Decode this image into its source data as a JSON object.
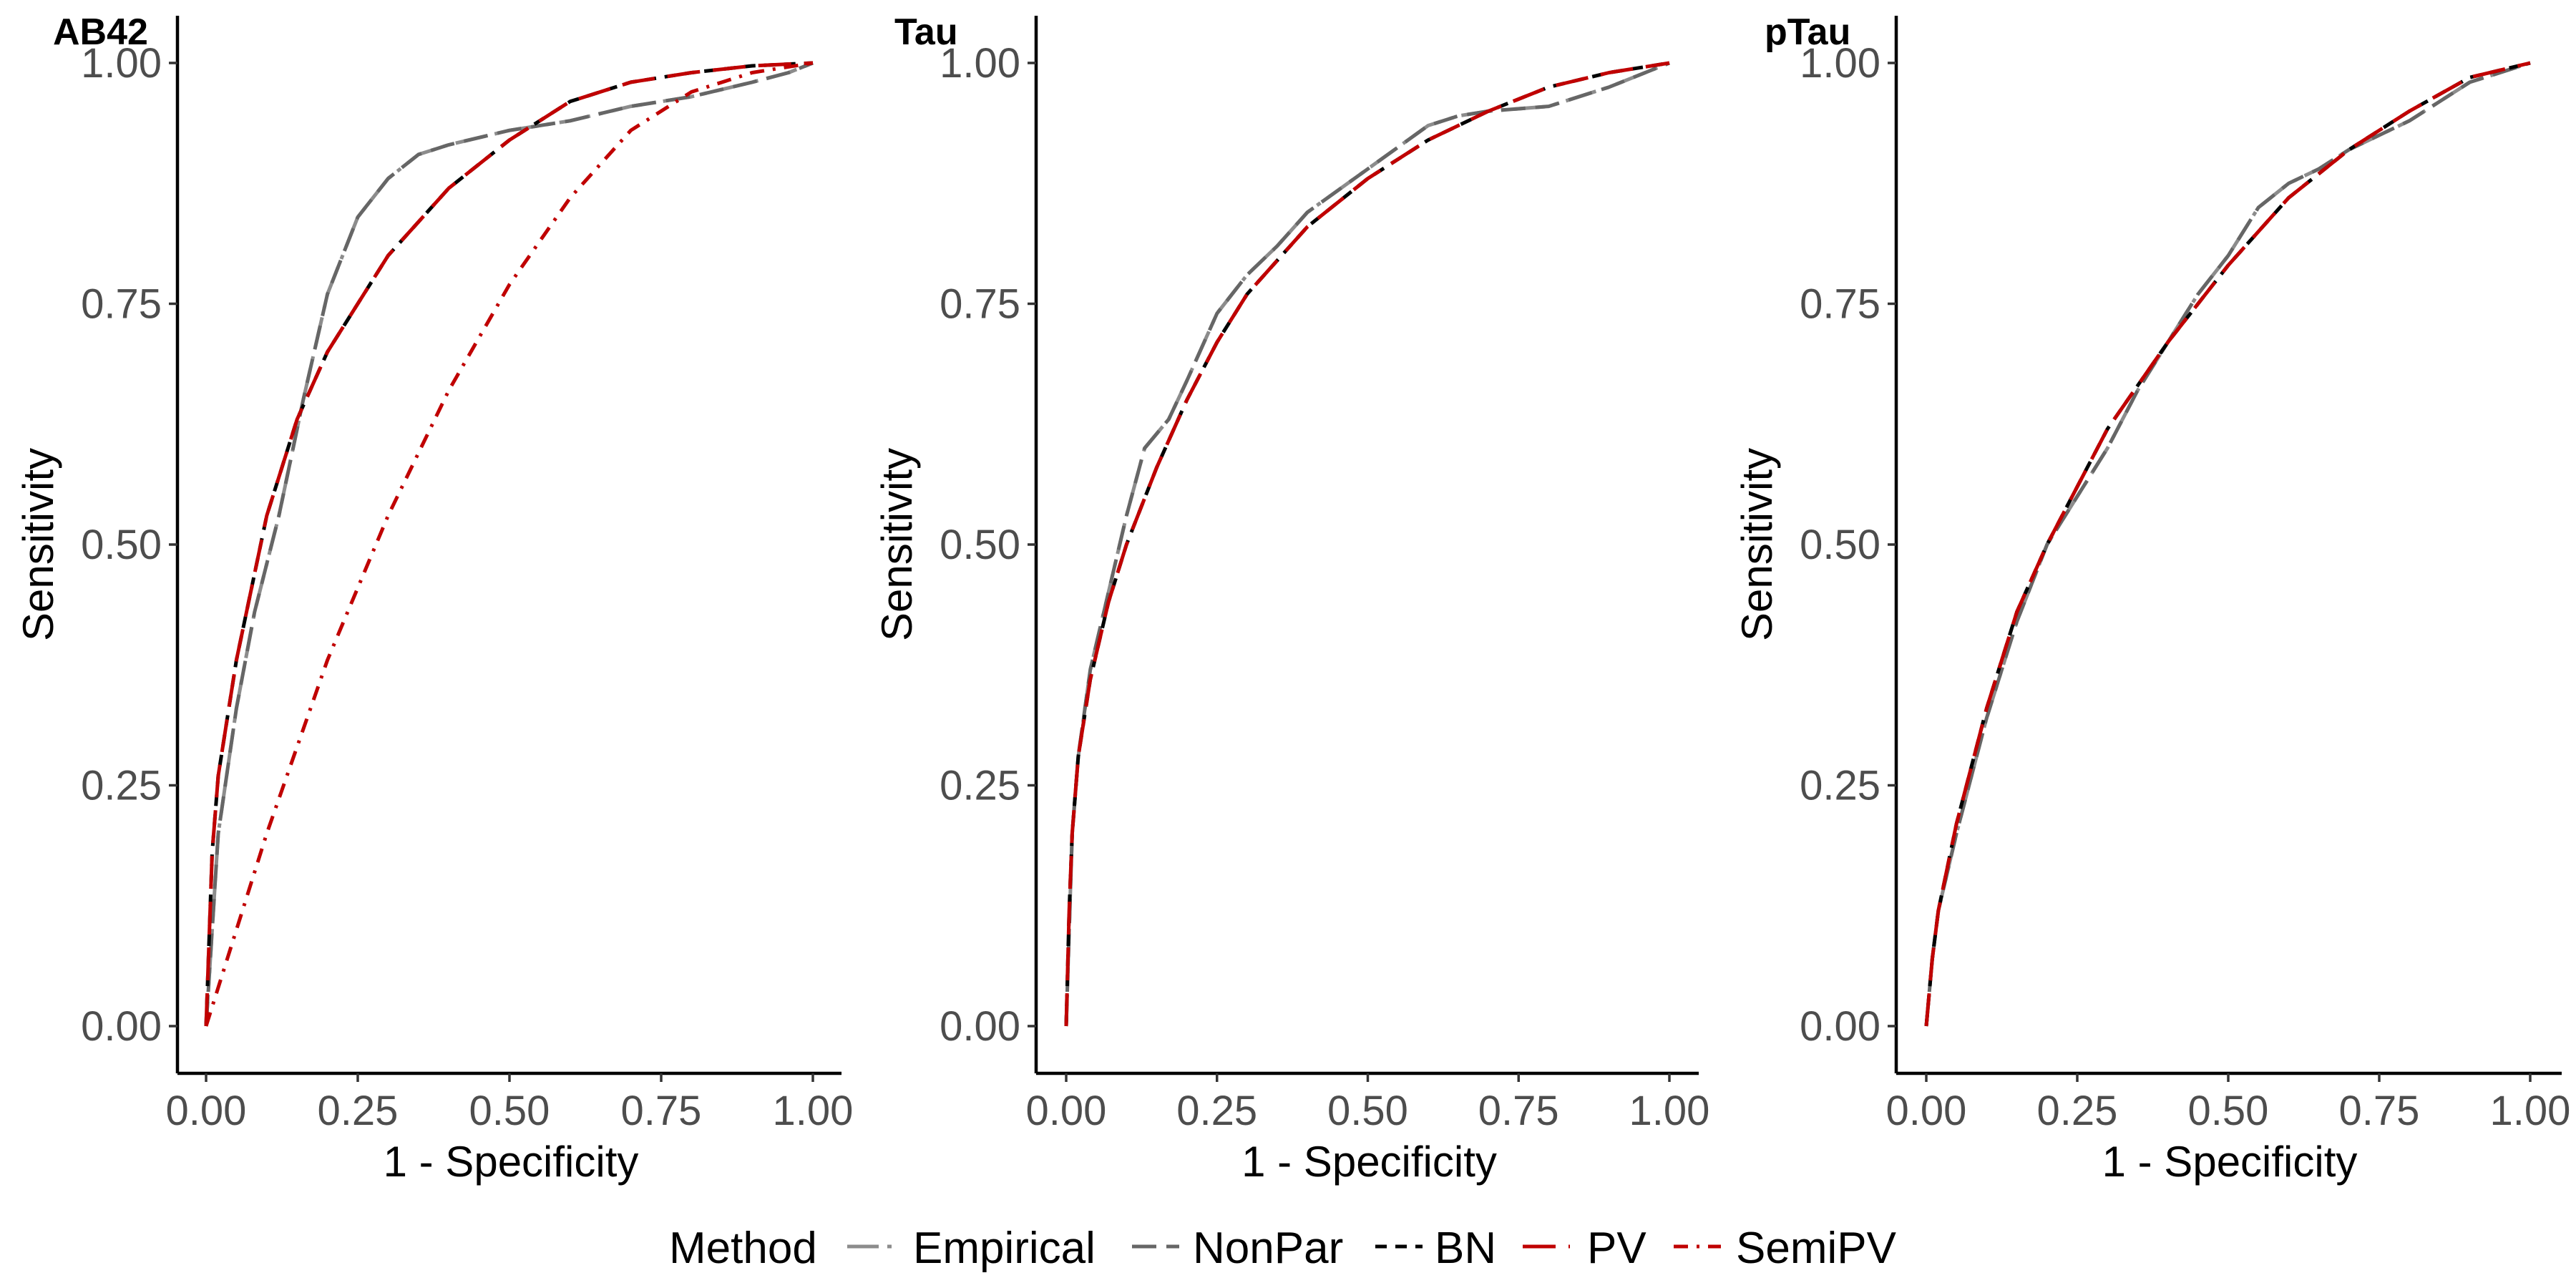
{
  "legend": {
    "title": "Method",
    "position": "bottom",
    "entries": [
      {
        "key": "Empirical",
        "label": "Empirical"
      },
      {
        "key": "NonPar",
        "label": "NonPar"
      },
      {
        "key": "BN",
        "label": "BN"
      },
      {
        "key": "PV",
        "label": "PV"
      },
      {
        "key": "SemiPV",
        "label": "SemiPV"
      }
    ]
  },
  "styles": {
    "Empirical": {
      "color": "#8c8c8c",
      "dash": "44 12 6 12"
    },
    "NonPar": {
      "color": "#666666",
      "dash": "34 14"
    },
    "BN": {
      "color": "#000000",
      "dash": "16 12"
    },
    "PV": {
      "color": "#c00000",
      "dash": "46 18"
    },
    "SemiPV": {
      "color": "#c00000",
      "dash": "20 12 4 12"
    }
  },
  "chart_data": [
    {
      "type": "line",
      "title": "AB42",
      "xlabel": "1 - Specificity",
      "ylabel": "Sensitivity",
      "xlim": [
        0,
        1
      ],
      "ylim": [
        0,
        1
      ],
      "xticks": [
        "0.00",
        "0.25",
        "0.50",
        "0.75",
        "1.00"
      ],
      "yticks": [
        "0.00",
        "0.25",
        "0.50",
        "0.75",
        "1.00"
      ],
      "grid": false,
      "series": [
        {
          "name": "Empirical",
          "x": [
            0,
            0.01,
            0.02,
            0.05,
            0.08,
            0.12,
            0.16,
            0.2,
            0.25,
            0.3,
            0.35,
            0.4,
            0.5,
            0.6,
            0.7,
            0.8,
            0.9,
            0.96,
            1
          ],
          "y": [
            0,
            0.1,
            0.2,
            0.33,
            0.43,
            0.53,
            0.65,
            0.76,
            0.84,
            0.88,
            0.905,
            0.915,
            0.93,
            0.94,
            0.955,
            0.965,
            0.98,
            0.99,
            1
          ]
        },
        {
          "name": "NonPar",
          "x": [
            0,
            0.01,
            0.02,
            0.05,
            0.08,
            0.12,
            0.16,
            0.2,
            0.25,
            0.3,
            0.35,
            0.4,
            0.5,
            0.6,
            0.7,
            0.8,
            0.9,
            0.96,
            1
          ],
          "y": [
            0,
            0.1,
            0.2,
            0.33,
            0.43,
            0.53,
            0.65,
            0.76,
            0.84,
            0.88,
            0.905,
            0.915,
            0.93,
            0.94,
            0.955,
            0.965,
            0.98,
            0.99,
            1
          ]
        },
        {
          "name": "BN",
          "x": [
            0,
            0.01,
            0.02,
            0.05,
            0.1,
            0.15,
            0.2,
            0.3,
            0.4,
            0.5,
            0.6,
            0.7,
            0.8,
            0.9,
            1
          ],
          "y": [
            0,
            0.18,
            0.26,
            0.38,
            0.53,
            0.63,
            0.7,
            0.8,
            0.87,
            0.92,
            0.96,
            0.98,
            0.99,
            0.997,
            1
          ]
        },
        {
          "name": "PV",
          "x": [
            0,
            0.01,
            0.02,
            0.05,
            0.1,
            0.15,
            0.2,
            0.3,
            0.4,
            0.5,
            0.6,
            0.7,
            0.8,
            0.9,
            1
          ],
          "y": [
            0,
            0.18,
            0.26,
            0.38,
            0.53,
            0.63,
            0.7,
            0.8,
            0.87,
            0.92,
            0.96,
            0.98,
            0.99,
            0.997,
            1
          ]
        },
        {
          "name": "SemiPV",
          "x": [
            0,
            0.05,
            0.1,
            0.2,
            0.3,
            0.4,
            0.5,
            0.6,
            0.7,
            0.8,
            0.9,
            1
          ],
          "y": [
            0,
            0.1,
            0.2,
            0.38,
            0.53,
            0.66,
            0.77,
            0.86,
            0.93,
            0.97,
            0.99,
            1
          ]
        }
      ]
    },
    {
      "type": "line",
      "title": "Tau",
      "xlabel": "1 - Specificity",
      "ylabel": "Sensitivity",
      "xlim": [
        0,
        1
      ],
      "ylim": [
        0,
        1
      ],
      "xticks": [
        "0.00",
        "0.25",
        "0.50",
        "0.75",
        "1.00"
      ],
      "yticks": [
        "0.00",
        "0.25",
        "0.50",
        "0.75",
        "1.00"
      ],
      "grid": false,
      "series": [
        {
          "name": "Empirical",
          "x": [
            0,
            0.005,
            0.01,
            0.02,
            0.04,
            0.07,
            0.1,
            0.13,
            0.17,
            0.2,
            0.25,
            0.3,
            0.35,
            0.4,
            0.5,
            0.6,
            0.65,
            0.7,
            0.8,
            0.9,
            1
          ],
          "y": [
            0,
            0.1,
            0.2,
            0.28,
            0.37,
            0.45,
            0.53,
            0.6,
            0.63,
            0.67,
            0.74,
            0.78,
            0.81,
            0.845,
            0.89,
            0.935,
            0.945,
            0.95,
            0.955,
            0.975,
            1
          ]
        },
        {
          "name": "NonPar",
          "x": [
            0,
            0.005,
            0.01,
            0.02,
            0.04,
            0.07,
            0.1,
            0.13,
            0.17,
            0.2,
            0.25,
            0.3,
            0.35,
            0.4,
            0.5,
            0.6,
            0.65,
            0.7,
            0.8,
            0.9,
            1
          ],
          "y": [
            0,
            0.1,
            0.2,
            0.28,
            0.37,
            0.45,
            0.53,
            0.6,
            0.63,
            0.67,
            0.74,
            0.78,
            0.81,
            0.845,
            0.89,
            0.935,
            0.945,
            0.95,
            0.955,
            0.975,
            1
          ]
        },
        {
          "name": "BN",
          "x": [
            0,
            0.005,
            0.01,
            0.02,
            0.04,
            0.07,
            0.1,
            0.15,
            0.2,
            0.25,
            0.3,
            0.4,
            0.5,
            0.6,
            0.7,
            0.8,
            0.9,
            1
          ],
          "y": [
            0,
            0.12,
            0.2,
            0.28,
            0.36,
            0.44,
            0.5,
            0.58,
            0.65,
            0.71,
            0.76,
            0.83,
            0.88,
            0.92,
            0.95,
            0.975,
            0.99,
            1
          ]
        },
        {
          "name": "PV",
          "x": [
            0,
            0.005,
            0.01,
            0.02,
            0.04,
            0.07,
            0.1,
            0.15,
            0.2,
            0.25,
            0.3,
            0.4,
            0.5,
            0.6,
            0.7,
            0.8,
            0.9,
            1
          ],
          "y": [
            0,
            0.12,
            0.2,
            0.28,
            0.36,
            0.44,
            0.5,
            0.58,
            0.65,
            0.71,
            0.76,
            0.83,
            0.88,
            0.92,
            0.95,
            0.975,
            0.99,
            1
          ]
        }
      ]
    },
    {
      "type": "line",
      "title": "pTau",
      "xlabel": "1 - Specificity",
      "ylabel": "Sensitivity",
      "xlim": [
        0,
        1
      ],
      "ylim": [
        0,
        1
      ],
      "xticks": [
        "0.00",
        "0.25",
        "0.50",
        "0.75",
        "1.00"
      ],
      "yticks": [
        "0.00",
        "0.25",
        "0.50",
        "0.75",
        "1.00"
      ],
      "grid": false,
      "series": [
        {
          "name": "Empirical",
          "x": [
            0,
            0.01,
            0.02,
            0.05,
            0.1,
            0.15,
            0.2,
            0.25,
            0.3,
            0.35,
            0.4,
            0.45,
            0.5,
            0.55,
            0.6,
            0.65,
            0.7,
            0.8,
            0.9,
            0.95,
            1
          ],
          "y": [
            0,
            0.07,
            0.12,
            0.2,
            0.32,
            0.42,
            0.5,
            0.55,
            0.6,
            0.66,
            0.71,
            0.76,
            0.8,
            0.85,
            0.875,
            0.89,
            0.91,
            0.94,
            0.98,
            0.99,
            1
          ]
        },
        {
          "name": "NonPar",
          "x": [
            0,
            0.01,
            0.02,
            0.05,
            0.1,
            0.15,
            0.2,
            0.25,
            0.3,
            0.35,
            0.4,
            0.45,
            0.5,
            0.55,
            0.6,
            0.65,
            0.7,
            0.8,
            0.9,
            0.95,
            1
          ],
          "y": [
            0,
            0.07,
            0.12,
            0.2,
            0.32,
            0.42,
            0.5,
            0.55,
            0.6,
            0.66,
            0.71,
            0.76,
            0.8,
            0.85,
            0.875,
            0.89,
            0.91,
            0.94,
            0.98,
            0.99,
            1
          ]
        },
        {
          "name": "BN",
          "x": [
            0,
            0.01,
            0.02,
            0.05,
            0.1,
            0.15,
            0.2,
            0.25,
            0.3,
            0.4,
            0.5,
            0.6,
            0.7,
            0.8,
            0.9,
            1
          ],
          "y": [
            0,
            0.07,
            0.12,
            0.21,
            0.33,
            0.43,
            0.5,
            0.56,
            0.62,
            0.71,
            0.79,
            0.86,
            0.91,
            0.95,
            0.985,
            1
          ]
        },
        {
          "name": "PV",
          "x": [
            0,
            0.01,
            0.02,
            0.05,
            0.1,
            0.15,
            0.2,
            0.25,
            0.3,
            0.4,
            0.5,
            0.6,
            0.7,
            0.8,
            0.9,
            1
          ],
          "y": [
            0,
            0.07,
            0.12,
            0.21,
            0.33,
            0.43,
            0.5,
            0.56,
            0.62,
            0.71,
            0.79,
            0.86,
            0.91,
            0.95,
            0.985,
            1
          ]
        }
      ]
    }
  ]
}
